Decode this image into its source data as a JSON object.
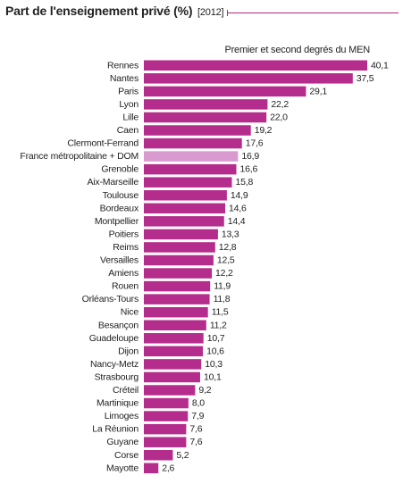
{
  "title": "Part de l'enseignement privé (%)",
  "year": "[2012]",
  "subtitle": "Premier et second degrés du MEN",
  "colors": {
    "bar": "#b52d8c",
    "highlight": "#d99ad0",
    "accent": "#b0287a"
  },
  "chart_data": {
    "type": "bar",
    "orientation": "horizontal",
    "title": "Part de l'enseignement privé (%)",
    "subtitle": "Premier et second degrés du MEN",
    "categories": [
      "Rennes",
      "Nantes",
      "Paris",
      "Lyon",
      "Lille",
      "Caen",
      "Clermont-Ferrand",
      "France métropolitaine + DOM",
      "Grenoble",
      "Aix-Marseille",
      "Toulouse",
      "Bordeaux",
      "Montpellier",
      "Poitiers",
      "Reims",
      "Versailles",
      "Amiens",
      "Rouen",
      "Orléans-Tours",
      "Nice",
      "Besançon",
      "Guadeloupe",
      "Dijon",
      "Nancy-Metz",
      "Strasbourg",
      "Créteil",
      "Martinique",
      "Limoges",
      "La Réunion",
      "Guyane",
      "Corse",
      "Mayotte"
    ],
    "values": [
      40.1,
      37.5,
      29.1,
      22.2,
      22.0,
      19.2,
      17.6,
      16.9,
      16.6,
      15.8,
      14.9,
      14.6,
      14.4,
      13.3,
      12.8,
      12.5,
      12.2,
      11.9,
      11.8,
      11.5,
      11.2,
      10.7,
      10.6,
      10.3,
      10.1,
      9.2,
      8.0,
      7.9,
      7.6,
      7.6,
      5.2,
      2.6
    ],
    "value_labels": [
      "40,1",
      "37,5",
      "29,1",
      "22,2",
      "22,0",
      "19,2",
      "17,6",
      "16,9",
      "16,6",
      "15,8",
      "14,9",
      "14,6",
      "14,4",
      "13,3",
      "12,8",
      "12,5",
      "12,2",
      "11,9",
      "11,8",
      "11,5",
      "11,2",
      "10,7",
      "10,6",
      "10,3",
      "10,1",
      "9,2",
      "8,0",
      "7,9",
      "7,6",
      "7,6",
      "5,2",
      "2,6"
    ],
    "highlight": "France métropolitaine + DOM",
    "xlim": [
      0,
      40.1
    ],
    "grid": false,
    "legend": "none"
  }
}
